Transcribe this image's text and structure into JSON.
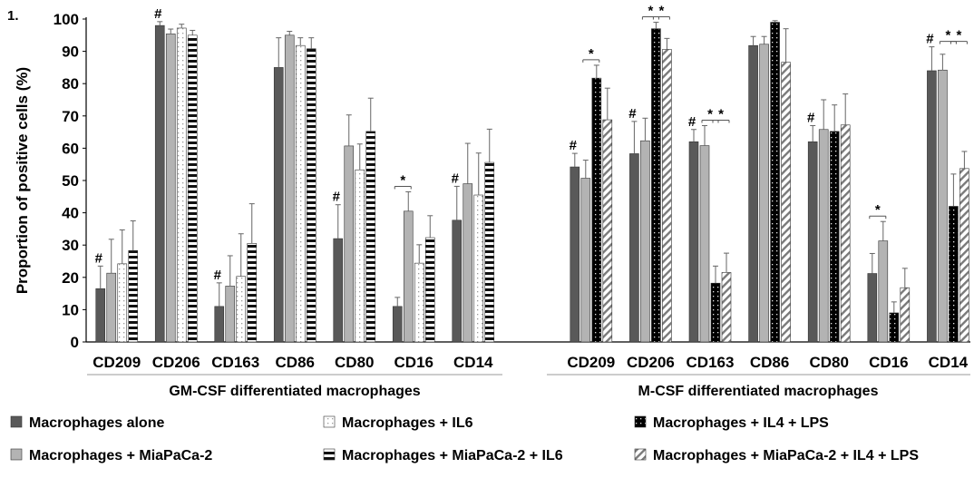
{
  "panel_label": "1.",
  "chart_data": {
    "type": "bar",
    "ylabel": "Proportion of positive cells (%)",
    "ylim": [
      0,
      100
    ],
    "yticks": [
      0,
      10,
      20,
      30,
      40,
      50,
      60,
      70,
      80,
      90,
      100
    ],
    "grid": false,
    "legend_position": "bottom",
    "series": [
      {
        "name": "Macrophages alone",
        "fill": "#595959",
        "pattern": "solid"
      },
      {
        "name": "Macrophages + MiaPaCa-2",
        "fill": "#b3b3b3",
        "pattern": "solid"
      },
      {
        "name": "Macrophages + IL6",
        "fill": "#ffffff",
        "pattern": "dots-light"
      },
      {
        "name": "Macrophages + MiaPaCa-2 + IL6",
        "fill": "#ffffff",
        "pattern": "horizontal-stripes"
      },
      {
        "name": "Macrophages + IL4 + LPS",
        "fill": "#000000",
        "pattern": "dots-dark"
      },
      {
        "name": "Macrophages + MiaPaCa-2 + IL4 + LPS",
        "fill": "#ffffff",
        "pattern": "diagonal-stripes"
      }
    ],
    "groups": [
      {
        "label": "GM-CSF differentiated macrophages",
        "series_used": [
          0,
          1,
          2,
          3
        ],
        "categories": [
          {
            "label": "CD209",
            "values": [
              16.5,
              21.3,
              24.2,
              28.3
            ],
            "errors": [
              7,
              10.5,
              10.5,
              9.2
            ],
            "annotations": [
              {
                "text": "#",
                "bars": [
                  0
                ]
              }
            ]
          },
          {
            "label": "CD206",
            "values": [
              98.0,
              95.4,
              97.2,
              95.0
            ],
            "errors": [
              1.2,
              1.5,
              1.2,
              1.5
            ],
            "annotations": [
              {
                "text": "#",
                "bars": [
                  0
                ]
              }
            ]
          },
          {
            "label": "CD163",
            "values": [
              11.0,
              17.3,
              20.3,
              30.5
            ],
            "errors": [
              7.3,
              9.4,
              13.2,
              12.3
            ],
            "annotations": [
              {
                "text": "#",
                "bars": [
                  0
                ]
              }
            ]
          },
          {
            "label": "CD86",
            "values": [
              85.0,
              95.0,
              91.8,
              90.8
            ],
            "errors": [
              9.2,
              1.2,
              2.4,
              3.4
            ],
            "annotations": []
          },
          {
            "label": "CD80",
            "values": [
              32.0,
              60.7,
              53.3,
              65.2
            ],
            "errors": [
              10.5,
              9.6,
              8.0,
              10.3
            ],
            "annotations": [
              {
                "text": "#",
                "bars": [
                  0
                ]
              }
            ]
          },
          {
            "label": "CD16",
            "values": [
              11.0,
              40.5,
              24.4,
              32.3
            ],
            "errors": [
              2.8,
              6.0,
              5.7,
              6.8
            ],
            "annotations": [
              {
                "text": "*",
                "bars": [
                  0,
                  1
                ]
              }
            ]
          },
          {
            "label": "CD14",
            "values": [
              37.7,
              49.0,
              45.5,
              55.6
            ],
            "errors": [
              10.5,
              12.5,
              13.0,
              10.3
            ],
            "annotations": [
              {
                "text": "#",
                "bars": [
                  0
                ]
              }
            ]
          }
        ]
      },
      {
        "label": "M-CSF differentiated macrophages",
        "series_used": [
          0,
          1,
          4,
          5
        ],
        "categories": [
          {
            "label": "CD209",
            "values": [
              54.2,
              50.7,
              81.7,
              68.8
            ],
            "errors": [
              4.2,
              5.6,
              4.0,
              9.8
            ],
            "annotations": [
              {
                "text": "#",
                "bars": [
                  0
                ]
              },
              {
                "text": "*",
                "bars": [
                  1,
                  2
                ]
              }
            ]
          },
          {
            "label": "CD206",
            "values": [
              58.3,
              62.3,
              97.0,
              90.6
            ],
            "errors": [
              10.0,
              7.0,
              2.0,
              3.4
            ],
            "annotations": [
              {
                "text": "#",
                "bars": [
                  0
                ]
              },
              {
                "text": "*",
                "bars": [
                  1,
                  2
                ]
              },
              {
                "text": "*",
                "bars": [
                  2,
                  3
                ]
              }
            ]
          },
          {
            "label": "CD163",
            "values": [
              62.0,
              60.8,
              18.2,
              21.5
            ],
            "errors": [
              3.8,
              6.2,
              5.3,
              6.0
            ],
            "annotations": [
              {
                "text": "#",
                "bars": [
                  0
                ]
              },
              {
                "text": "*",
                "bars": [
                  1,
                  2
                ]
              },
              {
                "text": "*",
                "bars": [
                  2,
                  3
                ]
              }
            ]
          },
          {
            "label": "CD86",
            "values": [
              91.8,
              92.2,
              99.0,
              86.6
            ],
            "errors": [
              2.8,
              2.4,
              0.5,
              10.4
            ],
            "annotations": []
          },
          {
            "label": "CD80",
            "values": [
              62.0,
              65.8,
              65.2,
              67.2
            ],
            "errors": [
              5.0,
              9.2,
              8.2,
              9.6
            ],
            "annotations": [
              {
                "text": "#",
                "bars": [
                  0
                ]
              }
            ]
          },
          {
            "label": "CD16",
            "values": [
              21.2,
              31.3,
              9.0,
              16.8
            ],
            "errors": [
              6.2,
              6.0,
              3.4,
              6.0
            ],
            "annotations": [
              {
                "text": "*",
                "bars": [
                  0,
                  1
                ]
              }
            ]
          },
          {
            "label": "CD14",
            "values": [
              84.0,
              84.2,
              42.0,
              53.7
            ],
            "errors": [
              7.4,
              4.9,
              10.0,
              5.3
            ],
            "annotations": [
              {
                "text": "#",
                "bars": [
                  0
                ]
              },
              {
                "text": "*",
                "bars": [
                  1,
                  2
                ]
              },
              {
                "text": "*",
                "bars": [
                  2,
                  3
                ]
              }
            ]
          }
        ]
      }
    ]
  }
}
